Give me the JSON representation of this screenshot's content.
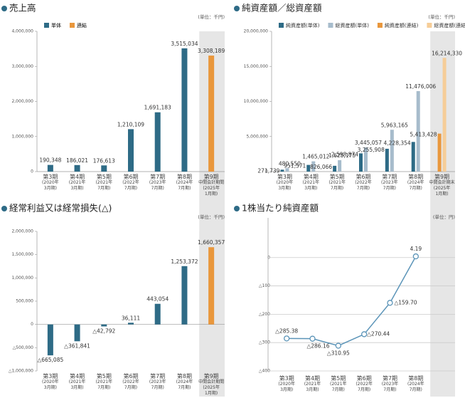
{
  "chart_data": [
    {
      "type": "bar",
      "title": "売上高",
      "unit": "(単位：千円)",
      "categories": [
        [
          "第3期",
          "(2020年",
          "3月期)"
        ],
        [
          "第4期",
          "(2021年",
          "3月期)"
        ],
        [
          "第5期",
          "(2021年",
          "7月期)"
        ],
        [
          "第6期",
          "(2022年",
          "7月期)"
        ],
        [
          "第7期",
          "(2023年",
          "7月期)"
        ],
        [
          "第8期",
          "(2024年",
          "7月期)"
        ],
        [
          "第9期",
          "中間会計期間",
          "(2025年",
          "1月期)"
        ]
      ],
      "series": [
        {
          "name": "単体",
          "color": "#2e6b86",
          "values": [
            190348,
            186021,
            176613,
            1210109,
            1691183,
            3515034,
            null
          ],
          "value_labels": [
            "190,348",
            "186,021",
            "176,613",
            "1,210,109",
            "1,691,183",
            "3,515,034",
            null
          ]
        },
        {
          "name": "連結",
          "color": "#e9973c",
          "values": [
            null,
            null,
            null,
            null,
            null,
            null,
            3308189
          ],
          "value_labels": [
            null,
            null,
            null,
            null,
            null,
            null,
            "3,308,189"
          ]
        }
      ],
      "ylim": [
        0,
        4000000
      ],
      "yticks": [
        0,
        {
          "value": 1000000,
          "label": "1,000,000"
        },
        {
          "value": 2000000,
          "label": "2,000,000"
        },
        {
          "value": 3000000,
          "label": "3,000,000"
        },
        {
          "value": 4000000,
          "label": "4,000,000"
        }
      ]
    },
    {
      "type": "bar",
      "title": "純資産額／総資産額",
      "unit": "(単位：千円)",
      "categories": [
        [
          "第3期",
          "(2020年",
          "3月期)"
        ],
        [
          "第4期",
          "(2021年",
          "3月期)"
        ],
        [
          "第5期",
          "(2021年",
          "7月期)"
        ],
        [
          "第6期",
          "(2022年",
          "7月期)"
        ],
        [
          "第7期",
          "(2023年",
          "7月期)"
        ],
        [
          "第8期",
          "(2024年",
          "7月期)"
        ],
        [
          "第9期",
          "中間会計期末",
          "(2025年",
          "1月期)"
        ]
      ],
      "series": [
        {
          "name": "純資産額(単体)",
          "color": "#2e6b86",
          "values": [
            271739,
            951571,
            826066,
            2598874,
            3255908,
            4228354,
            null
          ],
          "value_labels": [
            "271,739",
            "951,571",
            "826,066",
            "2,598,874",
            "3,255,908",
            "4,228,354",
            null
          ]
        },
        {
          "name": "総資産額(単体)",
          "color": "#a7bccc",
          "values": [
            480550,
            1465012,
            1625175,
            3445057,
            5963165,
            11476006,
            null
          ],
          "value_labels": [
            "480,550",
            "1,465,012",
            "1,625,175",
            "3,445,057",
            "5,963,165",
            "11,476,006",
            null
          ]
        },
        {
          "name": "純資産額(連結)",
          "color": "#e9973c",
          "values": [
            null,
            null,
            null,
            null,
            null,
            null,
            5413428
          ],
          "value_labels": [
            null,
            null,
            null,
            null,
            null,
            null,
            "5,413,428"
          ]
        },
        {
          "name": "総資産額(連結)",
          "color": "#f6cd98",
          "values": [
            null,
            null,
            null,
            null,
            null,
            null,
            16214330
          ],
          "value_labels": [
            null,
            null,
            null,
            null,
            null,
            null,
            "16,214,330"
          ]
        }
      ],
      "ylim": [
        0,
        20000000
      ],
      "yticks": [
        0,
        {
          "value": 5000000,
          "label": "5,000,000"
        },
        {
          "value": 10000000,
          "label": "10,000,000"
        },
        {
          "value": 15000000,
          "label": "15,000,000"
        },
        {
          "value": 20000000,
          "label": "20,000,000"
        }
      ]
    },
    {
      "type": "bar",
      "title": "経常利益又は経常損失(△)",
      "unit": "(単位：千円)",
      "categories": [
        [
          "第3期",
          "(2020年",
          "3月期)"
        ],
        [
          "第4期",
          "(2021年",
          "3月期)"
        ],
        [
          "第5期",
          "(2021年",
          "7月期)"
        ],
        [
          "第6期",
          "(2022年",
          "7月期)"
        ],
        [
          "第7期",
          "(2023年",
          "7月期)"
        ],
        [
          "第8期",
          "(2024年",
          "7月期)"
        ],
        [
          "第9期",
          "中間会計期間",
          "(2025年",
          "1月期)"
        ]
      ],
      "series": [
        {
          "name": "単体",
          "color": "#2e6b86",
          "values": [
            -665085,
            -361841,
            -42792,
            36111,
            443054,
            1253372,
            null
          ],
          "value_labels": [
            "△665,085",
            "△361,841",
            "△42,792",
            "36,111",
            "443,054",
            "1,253,372",
            null
          ]
        },
        {
          "name": "連結",
          "color": "#e9973c",
          "values": [
            null,
            null,
            null,
            null,
            null,
            null,
            1660357
          ],
          "value_labels": [
            null,
            null,
            null,
            null,
            null,
            null,
            "1,660,357"
          ]
        }
      ],
      "ylim": [
        -1000000,
        2000000
      ],
      "yticks": [
        {
          "value": -1000000,
          "label": "△1,000,000"
        },
        {
          "value": -500000,
          "label": "△500,000"
        },
        0,
        {
          "value": 500000,
          "label": "500,000"
        },
        {
          "value": 1000000,
          "label": "1,000,000"
        },
        {
          "value": 1500000,
          "label": "1,500,000"
        },
        {
          "value": 2000000,
          "label": "2,000,000"
        }
      ]
    },
    {
      "type": "line",
      "title": "1株当たり純資産額",
      "unit": "(単位：円)",
      "categories": [
        [
          "第3期",
          "(2020年",
          "3月期)"
        ],
        [
          "第4期",
          "(2021年",
          "3月期)"
        ],
        [
          "第5期",
          "(2021年",
          "7月期)"
        ],
        [
          "第6期",
          "(2022年",
          "7月期)"
        ],
        [
          "第7期",
          "(2023年",
          "7月期)"
        ],
        [
          "第8期",
          "(2024年",
          "7月期)"
        ]
      ],
      "values": [
        -285.38,
        -286.16,
        -310.95,
        -270.44,
        -159.7,
        4.19
      ],
      "value_labels": [
        "△285.38",
        "△286.16",
        "△310.95",
        "△270.44",
        "△159.70",
        "4.19"
      ],
      "color": "#5b94b8",
      "grid": true,
      "ylim": [
        -400,
        130
      ],
      "yticks": [
        {
          "value": -400,
          "label": "△400"
        },
        {
          "value": -300,
          "label": "△300"
        },
        {
          "value": -200,
          "label": "△200"
        },
        {
          "value": -100,
          "label": "△100"
        },
        0
      ]
    }
  ]
}
